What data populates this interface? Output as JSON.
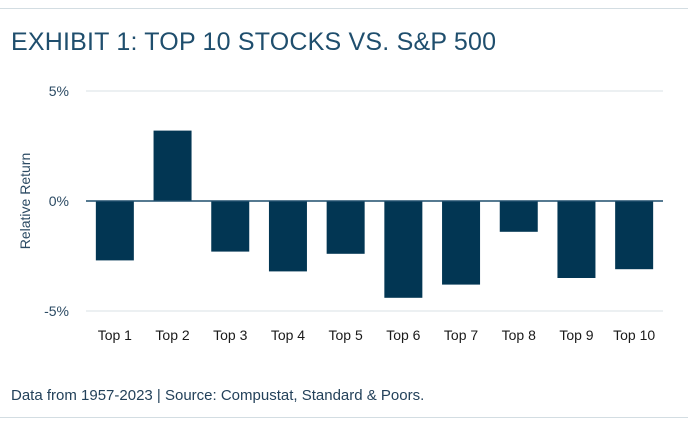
{
  "title": "EXHIBIT 1: TOP 10 STOCKS VS. S&P 500",
  "source_note": "Data from 1957-2023 | Source: Compustat, Standard & Poors.",
  "colors": {
    "bar": "#023653",
    "title": "#1f4e6d",
    "axis": "#2b4a63",
    "grid": "#d9e0e4",
    "zero_line": "#1f4e6d"
  },
  "chart_data": {
    "type": "bar",
    "title": "EXHIBIT 1: TOP 10 STOCKS VS. S&P 500",
    "xlabel": "",
    "ylabel": "Relative Return",
    "ylim": [
      -5,
      5
    ],
    "yticks": [
      5,
      0,
      -5
    ],
    "ytick_labels": [
      "5%",
      "0%",
      "-5%"
    ],
    "grid": true,
    "categories": [
      "Top 1",
      "Top 2",
      "Top 3",
      "Top 4",
      "Top 5",
      "Top 6",
      "Top 7",
      "Top 8",
      "Top 9",
      "Top 10"
    ],
    "values": [
      -2.7,
      3.2,
      -2.3,
      -3.2,
      -2.4,
      -4.4,
      -3.8,
      -1.4,
      -3.5,
      -3.1
    ]
  }
}
